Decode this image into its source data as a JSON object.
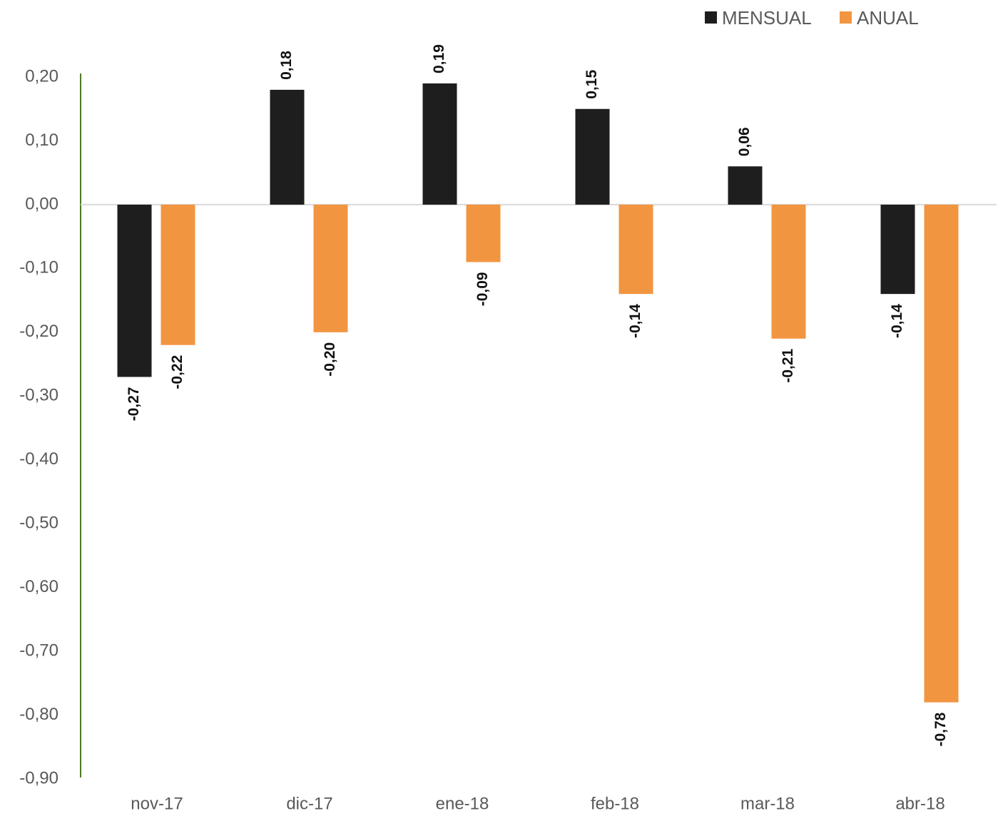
{
  "chart_data": {
    "type": "bar",
    "categories": [
      "nov-17",
      "dic-17",
      "ene-18",
      "feb-18",
      "mar-18",
      "abr-18"
    ],
    "series": [
      {
        "name": "MENSUAL",
        "color": "#1e1e1e",
        "values": [
          -0.27,
          0.18,
          0.19,
          0.15,
          0.06,
          -0.14
        ],
        "value_labels": [
          "-0,27",
          "0,18",
          "0,19",
          "0,15",
          "0,06",
          "-0,14"
        ]
      },
      {
        "name": "ANUAL",
        "color": "#f29541",
        "values": [
          -0.22,
          -0.2,
          -0.09,
          -0.14,
          -0.21,
          -0.78
        ],
        "value_labels": [
          "-0,22",
          "-0,20",
          "-0,09",
          "-0,14",
          "-0,21",
          "-0,78"
        ]
      }
    ],
    "ylim": [
      -0.9,
      0.2
    ],
    "yticks": [
      {
        "value": 0.2,
        "label": "0,20"
      },
      {
        "value": 0.1,
        "label": "0,10"
      },
      {
        "value": 0,
        "label": "0,00"
      },
      {
        "value": -0.1,
        "label": "-0,10"
      },
      {
        "value": -0.2,
        "label": "-0,20"
      },
      {
        "value": -0.3,
        "label": "-0,30"
      },
      {
        "value": -0.4,
        "label": "-0,40"
      },
      {
        "value": -0.5,
        "label": "-0,50"
      },
      {
        "value": -0.6,
        "label": "-0,60"
      },
      {
        "value": -0.7,
        "label": "-0,70"
      },
      {
        "value": -0.8,
        "label": "-0,80"
      },
      {
        "value": -0.9,
        "label": "-0,90"
      }
    ],
    "grid": false,
    "legend": "top-right"
  }
}
